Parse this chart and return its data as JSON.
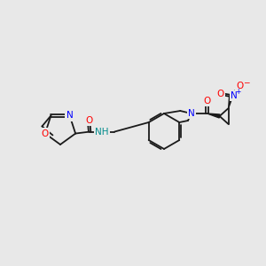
{
  "bg_color": "#e8e8e8",
  "bond_color": "#1a1a1a",
  "atom_colors": {
    "O": "#ff0000",
    "N": "#0000ff",
    "N_amide": "#008b8b",
    "C": "#1a1a1a"
  },
  "figsize": [
    3.0,
    3.0
  ],
  "dpi": 100
}
